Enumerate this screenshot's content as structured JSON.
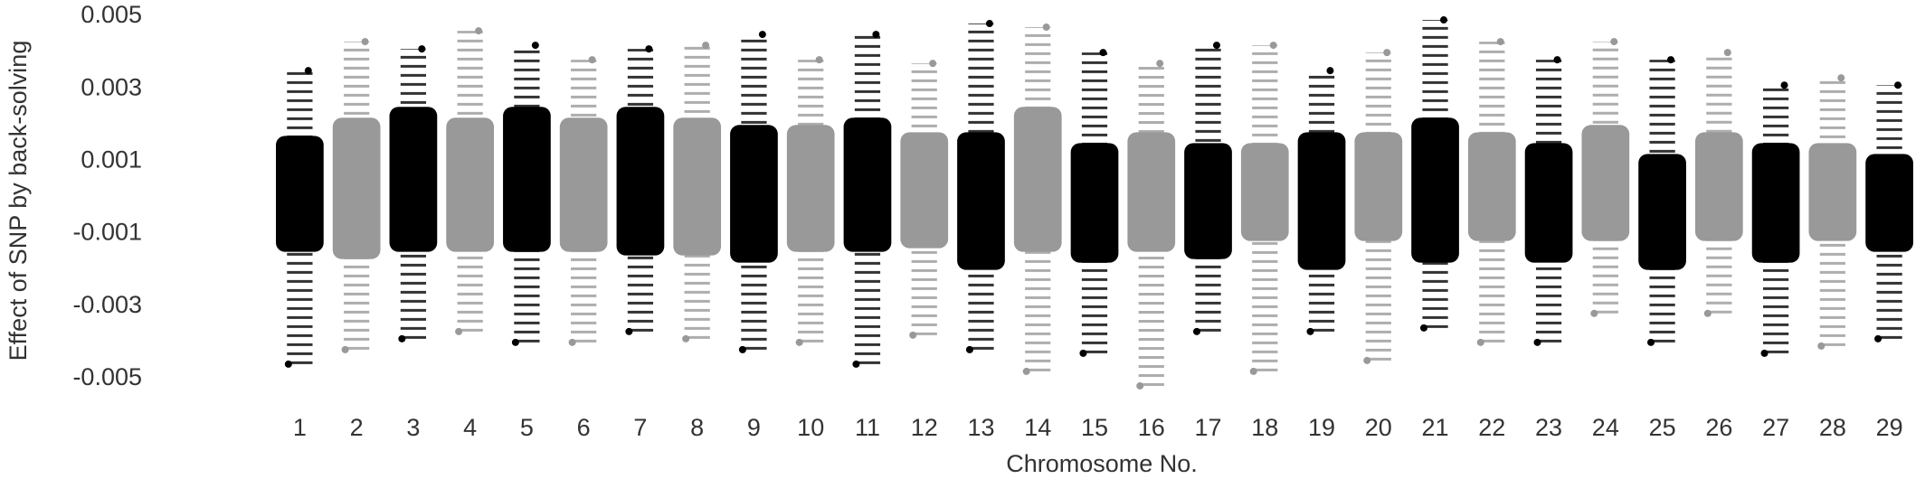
{
  "chart_data": {
    "type": "manhattan",
    "y_label": "Effect of SNP by back-solving",
    "x_label": "Chromosome No.",
    "categories": [
      "1",
      "2",
      "3",
      "4",
      "5",
      "6",
      "7",
      "8",
      "9",
      "10",
      "11",
      "12",
      "13",
      "14",
      "15",
      "16",
      "17",
      "18",
      "19",
      "20",
      "21",
      "22",
      "23",
      "24",
      "25",
      "26",
      "27",
      "28",
      "29"
    ],
    "colors": [
      "#000000",
      "#999999"
    ],
    "core_low": [
      -0.0015,
      -0.0017,
      -0.0015,
      -0.0015,
      -0.0015,
      -0.0015,
      -0.0016,
      -0.0016,
      -0.0018,
      -0.0015,
      -0.0015,
      -0.0014,
      -0.002,
      -0.0015,
      -0.0018,
      -0.0015,
      -0.0017,
      -0.0012,
      -0.002,
      -0.0012,
      -0.0018,
      -0.0012,
      -0.0018,
      -0.0012,
      -0.002,
      -0.0012,
      -0.0018,
      -0.0012,
      -0.0015
    ],
    "core_high": [
      0.0017,
      0.0022,
      0.0025,
      0.0022,
      0.0025,
      0.0022,
      0.0025,
      0.0022,
      0.002,
      0.002,
      0.0022,
      0.0018,
      0.0018,
      0.0025,
      0.0015,
      0.0018,
      0.0015,
      0.0015,
      0.0018,
      0.0018,
      0.0022,
      0.0018,
      0.0015,
      0.002,
      0.0012,
      0.0018,
      0.0015,
      0.0015,
      0.0012
    ],
    "min": [
      -0.0046,
      -0.0042,
      -0.0039,
      -0.0037,
      -0.004,
      -0.004,
      -0.0037,
      -0.0039,
      -0.0042,
      -0.004,
      -0.0046,
      -0.0038,
      -0.0042,
      -0.0048,
      -0.0043,
      -0.0052,
      -0.0037,
      -0.0048,
      -0.0037,
      -0.0045,
      -0.0036,
      -0.004,
      -0.004,
      -0.0032,
      -0.004,
      -0.0032,
      -0.0043,
      -0.0041,
      -0.0039
    ],
    "max": [
      0.0035,
      0.0043,
      0.0041,
      0.0046,
      0.0042,
      0.0038,
      0.0041,
      0.0042,
      0.0045,
      0.0038,
      0.0045,
      0.0037,
      0.0048,
      0.0047,
      0.004,
      0.0037,
      0.0042,
      0.0042,
      0.0035,
      0.004,
      0.0049,
      0.0043,
      0.0038,
      0.0043,
      0.0038,
      0.004,
      0.0031,
      0.0033,
      0.0031
    ],
    "ylim": [
      -0.0056,
      0.0053
    ],
    "yticks": [
      -0.005,
      -0.003,
      -0.001,
      0.001,
      0.003,
      0.005
    ],
    "grid": false
  }
}
